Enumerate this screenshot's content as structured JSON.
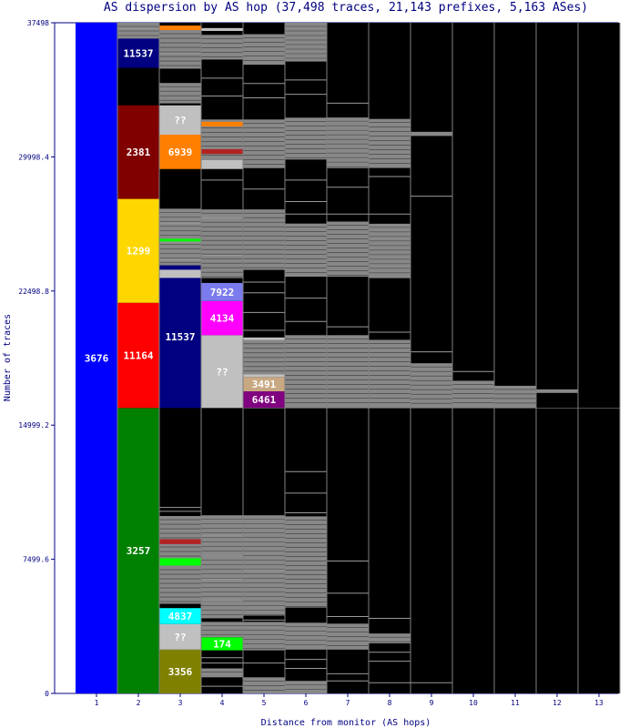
{
  "chart_data": {
    "type": "bar",
    "title": "AS dispersion by AS hop (37,498 traces, 21,143 prefixes, 5,163 ASes)",
    "xlabel": "Distance from monitor (AS hops)",
    "ylabel": "Number of traces",
    "categories": [
      "1",
      "2",
      "3",
      "4",
      "5",
      "6",
      "7",
      "8",
      "9",
      "10",
      "11",
      "12",
      "13"
    ],
    "ylim": [
      0,
      37498
    ],
    "y_ticks": [
      "0",
      "7499.6",
      "14999.2",
      "22498.8",
      "29998.4",
      "37498"
    ],
    "y_tick_values": [
      0,
      7499.6,
      14999.2,
      22498.8,
      29998.4,
      37498
    ],
    "background": "#000000",
    "other_color": "#888888",
    "segments": [
      {
        "hop": 1,
        "label": "3676",
        "y0": 0,
        "y1": 37498,
        "color": "#0000ff"
      },
      {
        "hop": 2,
        "label": "3257",
        "y0": 0,
        "y1": 15960,
        "color": "#008000"
      },
      {
        "hop": 2,
        "label": "11164",
        "y0": 15960,
        "y1": 21840,
        "color": "#ff0000"
      },
      {
        "hop": 2,
        "label": "1299",
        "y0": 21840,
        "y1": 27650,
        "color": "#ffd700"
      },
      {
        "hop": 2,
        "label": "2381",
        "y0": 27650,
        "y1": 32880,
        "color": "#800000"
      },
      {
        "hop": 2,
        "label": "11537",
        "y0": 34980,
        "y1": 36610,
        "color": "#000080"
      },
      {
        "hop": 3,
        "label": "3356",
        "y0": 0,
        "y1": 2450,
        "color": "#808000"
      },
      {
        "hop": 3,
        "label": "??",
        "y0": 2450,
        "y1": 3880,
        "color": "#c0c0c0"
      },
      {
        "hop": 3,
        "label": "4837",
        "y0": 3880,
        "y1": 4770,
        "color": "#00ffff"
      },
      {
        "hop": 3,
        "label": "",
        "y0": 7150,
        "y1": 7560,
        "color": "#00ff00"
      },
      {
        "hop": 3,
        "label": "",
        "y0": 8350,
        "y1": 8620,
        "color": "#b22222"
      },
      {
        "hop": 3,
        "label": "11537",
        "y0": 15960,
        "y1": 23930,
        "color": "#000080"
      },
      {
        "hop": 3,
        "label": "",
        "y0": 23230,
        "y1": 23690,
        "color": "#c0c0c0"
      },
      {
        "hop": 3,
        "label": "",
        "y0": 25270,
        "y1": 25420,
        "color": "#00ff00"
      },
      {
        "hop": 3,
        "label": "6939",
        "y0": 29320,
        "y1": 31240,
        "color": "#ff8000"
      },
      {
        "hop": 3,
        "label": "??",
        "y0": 31240,
        "y1": 32880,
        "color": "#c0c0c0"
      },
      {
        "hop": 3,
        "label": "",
        "y0": 37090,
        "y1": 37340,
        "color": "#ff8000"
      },
      {
        "hop": 4,
        "label": "174",
        "y0": 2410,
        "y1": 3140,
        "color": "#00ff00"
      },
      {
        "hop": 4,
        "label": "??",
        "y0": 15960,
        "y1": 20030,
        "color": "#c0c0c0"
      },
      {
        "hop": 4,
        "label": "4134",
        "y0": 20030,
        "y1": 21940,
        "color": "#ff00ff"
      },
      {
        "hop": 4,
        "label": "7922",
        "y0": 21940,
        "y1": 22950,
        "color": "#7b7bee"
      },
      {
        "hop": 4,
        "label": "",
        "y0": 29320,
        "y1": 29830,
        "color": "#c0c0c0"
      },
      {
        "hop": 4,
        "label": "",
        "y0": 30160,
        "y1": 30430,
        "color": "#b22222"
      },
      {
        "hop": 4,
        "label": "",
        "y0": 31700,
        "y1": 31960,
        "color": "#ff8000"
      },
      {
        "hop": 4,
        "label": "",
        "y0": 37040,
        "y1": 37200,
        "color": "#c0c0c0"
      },
      {
        "hop": 5,
        "label": "6461",
        "y0": 15960,
        "y1": 16890,
        "color": "#800080"
      },
      {
        "hop": 5,
        "label": "3491",
        "y0": 16890,
        "y1": 17690,
        "color": "#c8a882"
      },
      {
        "hop": 5,
        "label": "",
        "y0": 17690,
        "y1": 17850,
        "color": "#c0c0c0"
      },
      {
        "hop": 5,
        "label": "",
        "y0": 19750,
        "y1": 19900,
        "color": "#c0c0c0"
      }
    ],
    "other_blocks": [
      {
        "hop": 2,
        "y0": 36610,
        "y1": 37498
      },
      {
        "hop": 3,
        "y0": 5010,
        "y1": 9920
      },
      {
        "hop": 3,
        "y0": 23930,
        "y1": 27100
      },
      {
        "hop": 3,
        "y0": 32990,
        "y1": 34130
      },
      {
        "hop": 3,
        "y0": 34930,
        "y1": 37090
      },
      {
        "hop": 4,
        "y0": 900,
        "y1": 1400
      },
      {
        "hop": 4,
        "y0": 3140,
        "y1": 4000
      },
      {
        "hop": 4,
        "y0": 4200,
        "y1": 9960
      },
      {
        "hop": 4,
        "y0": 23220,
        "y1": 27060
      },
      {
        "hop": 4,
        "y0": 29830,
        "y1": 32090
      },
      {
        "hop": 4,
        "y0": 35440,
        "y1": 36820
      },
      {
        "hop": 5,
        "y0": 0,
        "y1": 900
      },
      {
        "hop": 5,
        "y0": 2410,
        "y1": 4000
      },
      {
        "hop": 5,
        "y0": 4350,
        "y1": 9960
      },
      {
        "hop": 5,
        "y0": 17850,
        "y1": 19750
      },
      {
        "hop": 5,
        "y0": 23680,
        "y1": 27060
      },
      {
        "hop": 5,
        "y0": 29370,
        "y1": 32090
      },
      {
        "hop": 5,
        "y0": 35150,
        "y1": 36860
      },
      {
        "hop": 6,
        "y0": 0,
        "y1": 700
      },
      {
        "hop": 6,
        "y0": 2450,
        "y1": 3950
      },
      {
        "hop": 6,
        "y0": 4800,
        "y1": 9900
      },
      {
        "hop": 6,
        "y0": 15960,
        "y1": 20030
      },
      {
        "hop": 6,
        "y0": 23300,
        "y1": 26270
      },
      {
        "hop": 6,
        "y0": 29850,
        "y1": 32190
      },
      {
        "hop": 6,
        "y0": 35330,
        "y1": 37498
      },
      {
        "hop": 7,
        "y0": 2450,
        "y1": 3900
      },
      {
        "hop": 7,
        "y0": 15960,
        "y1": 20030
      },
      {
        "hop": 7,
        "y0": 23300,
        "y1": 26380
      },
      {
        "hop": 7,
        "y0": 29370,
        "y1": 32200
      },
      {
        "hop": 8,
        "y0": 2800,
        "y1": 3350
      },
      {
        "hop": 8,
        "y0": 15960,
        "y1": 19770
      },
      {
        "hop": 8,
        "y0": 23220,
        "y1": 26260
      },
      {
        "hop": 8,
        "y0": 29380,
        "y1": 32120
      },
      {
        "hop": 9,
        "y0": 15960,
        "y1": 18460
      },
      {
        "hop": 9,
        "y0": 31170,
        "y1": 31400
      },
      {
        "hop": 10,
        "y0": 15960,
        "y1": 17480
      },
      {
        "hop": 11,
        "y0": 15960,
        "y1": 17200
      },
      {
        "hop": 12,
        "y0": 16800,
        "y1": 17000
      }
    ],
    "stripes": [
      {
        "hop": 2,
        "y": 37150
      },
      {
        "hop": 3,
        "y": 1300
      },
      {
        "hop": 3,
        "y": 10180
      },
      {
        "hop": 3,
        "y": 10400
      },
      {
        "hop": 3,
        "y": 24250
      },
      {
        "hop": 3,
        "y": 25200
      },
      {
        "hop": 3,
        "y": 26300
      },
      {
        "hop": 3,
        "y": 32500
      },
      {
        "hop": 3,
        "y": 35800
      },
      {
        "hop": 4,
        "y": 400
      },
      {
        "hop": 4,
        "y": 1700
      },
      {
        "hop": 4,
        "y": 2000
      },
      {
        "hop": 4,
        "y": 5200
      },
      {
        "hop": 4,
        "y": 6400
      },
      {
        "hop": 4,
        "y": 7700
      },
      {
        "hop": 4,
        "y": 8800
      },
      {
        "hop": 4,
        "y": 22900
      },
      {
        "hop": 4,
        "y": 24500
      },
      {
        "hop": 4,
        "y": 26600
      },
      {
        "hop": 4,
        "y": 28700
      },
      {
        "hop": 4,
        "y": 33400
      },
      {
        "hop": 4,
        "y": 34400
      },
      {
        "hop": 5,
        "y": 1700
      },
      {
        "hop": 5,
        "y": 4100
      },
      {
        "hop": 5,
        "y": 6900
      },
      {
        "hop": 5,
        "y": 20300
      },
      {
        "hop": 5,
        "y": 21300
      },
      {
        "hop": 5,
        "y": 22400
      },
      {
        "hop": 5,
        "y": 23000
      },
      {
        "hop": 5,
        "y": 28200
      },
      {
        "hop": 5,
        "y": 33300
      },
      {
        "hop": 5,
        "y": 34100
      },
      {
        "hop": 6,
        "y": 1400
      },
      {
        "hop": 6,
        "y": 1900
      },
      {
        "hop": 6,
        "y": 10100
      },
      {
        "hop": 6,
        "y": 11200
      },
      {
        "hop": 6,
        "y": 12400
      },
      {
        "hop": 6,
        "y": 20800
      },
      {
        "hop": 6,
        "y": 22100
      },
      {
        "hop": 6,
        "y": 26800
      },
      {
        "hop": 6,
        "y": 27500
      },
      {
        "hop": 6,
        "y": 28700
      },
      {
        "hop": 6,
        "y": 33500
      },
      {
        "hop": 6,
        "y": 34300
      },
      {
        "hop": 7,
        "y": 700
      },
      {
        "hop": 7,
        "y": 1100
      },
      {
        "hop": 7,
        "y": 4300
      },
      {
        "hop": 7,
        "y": 5600
      },
      {
        "hop": 7,
        "y": 7400
      },
      {
        "hop": 7,
        "y": 20500
      },
      {
        "hop": 7,
        "y": 26800
      },
      {
        "hop": 7,
        "y": 28300
      },
      {
        "hop": 7,
        "y": 33000
      },
      {
        "hop": 8,
        "y": 600
      },
      {
        "hop": 8,
        "y": 1800
      },
      {
        "hop": 8,
        "y": 2300
      },
      {
        "hop": 8,
        "y": 4200
      },
      {
        "hop": 8,
        "y": 20200
      },
      {
        "hop": 8,
        "y": 26800
      },
      {
        "hop": 8,
        "y": 28900
      },
      {
        "hop": 9,
        "y": 600
      },
      {
        "hop": 9,
        "y": 19100
      },
      {
        "hop": 9,
        "y": 27800
      },
      {
        "hop": 10,
        "y": 18000
      }
    ]
  }
}
